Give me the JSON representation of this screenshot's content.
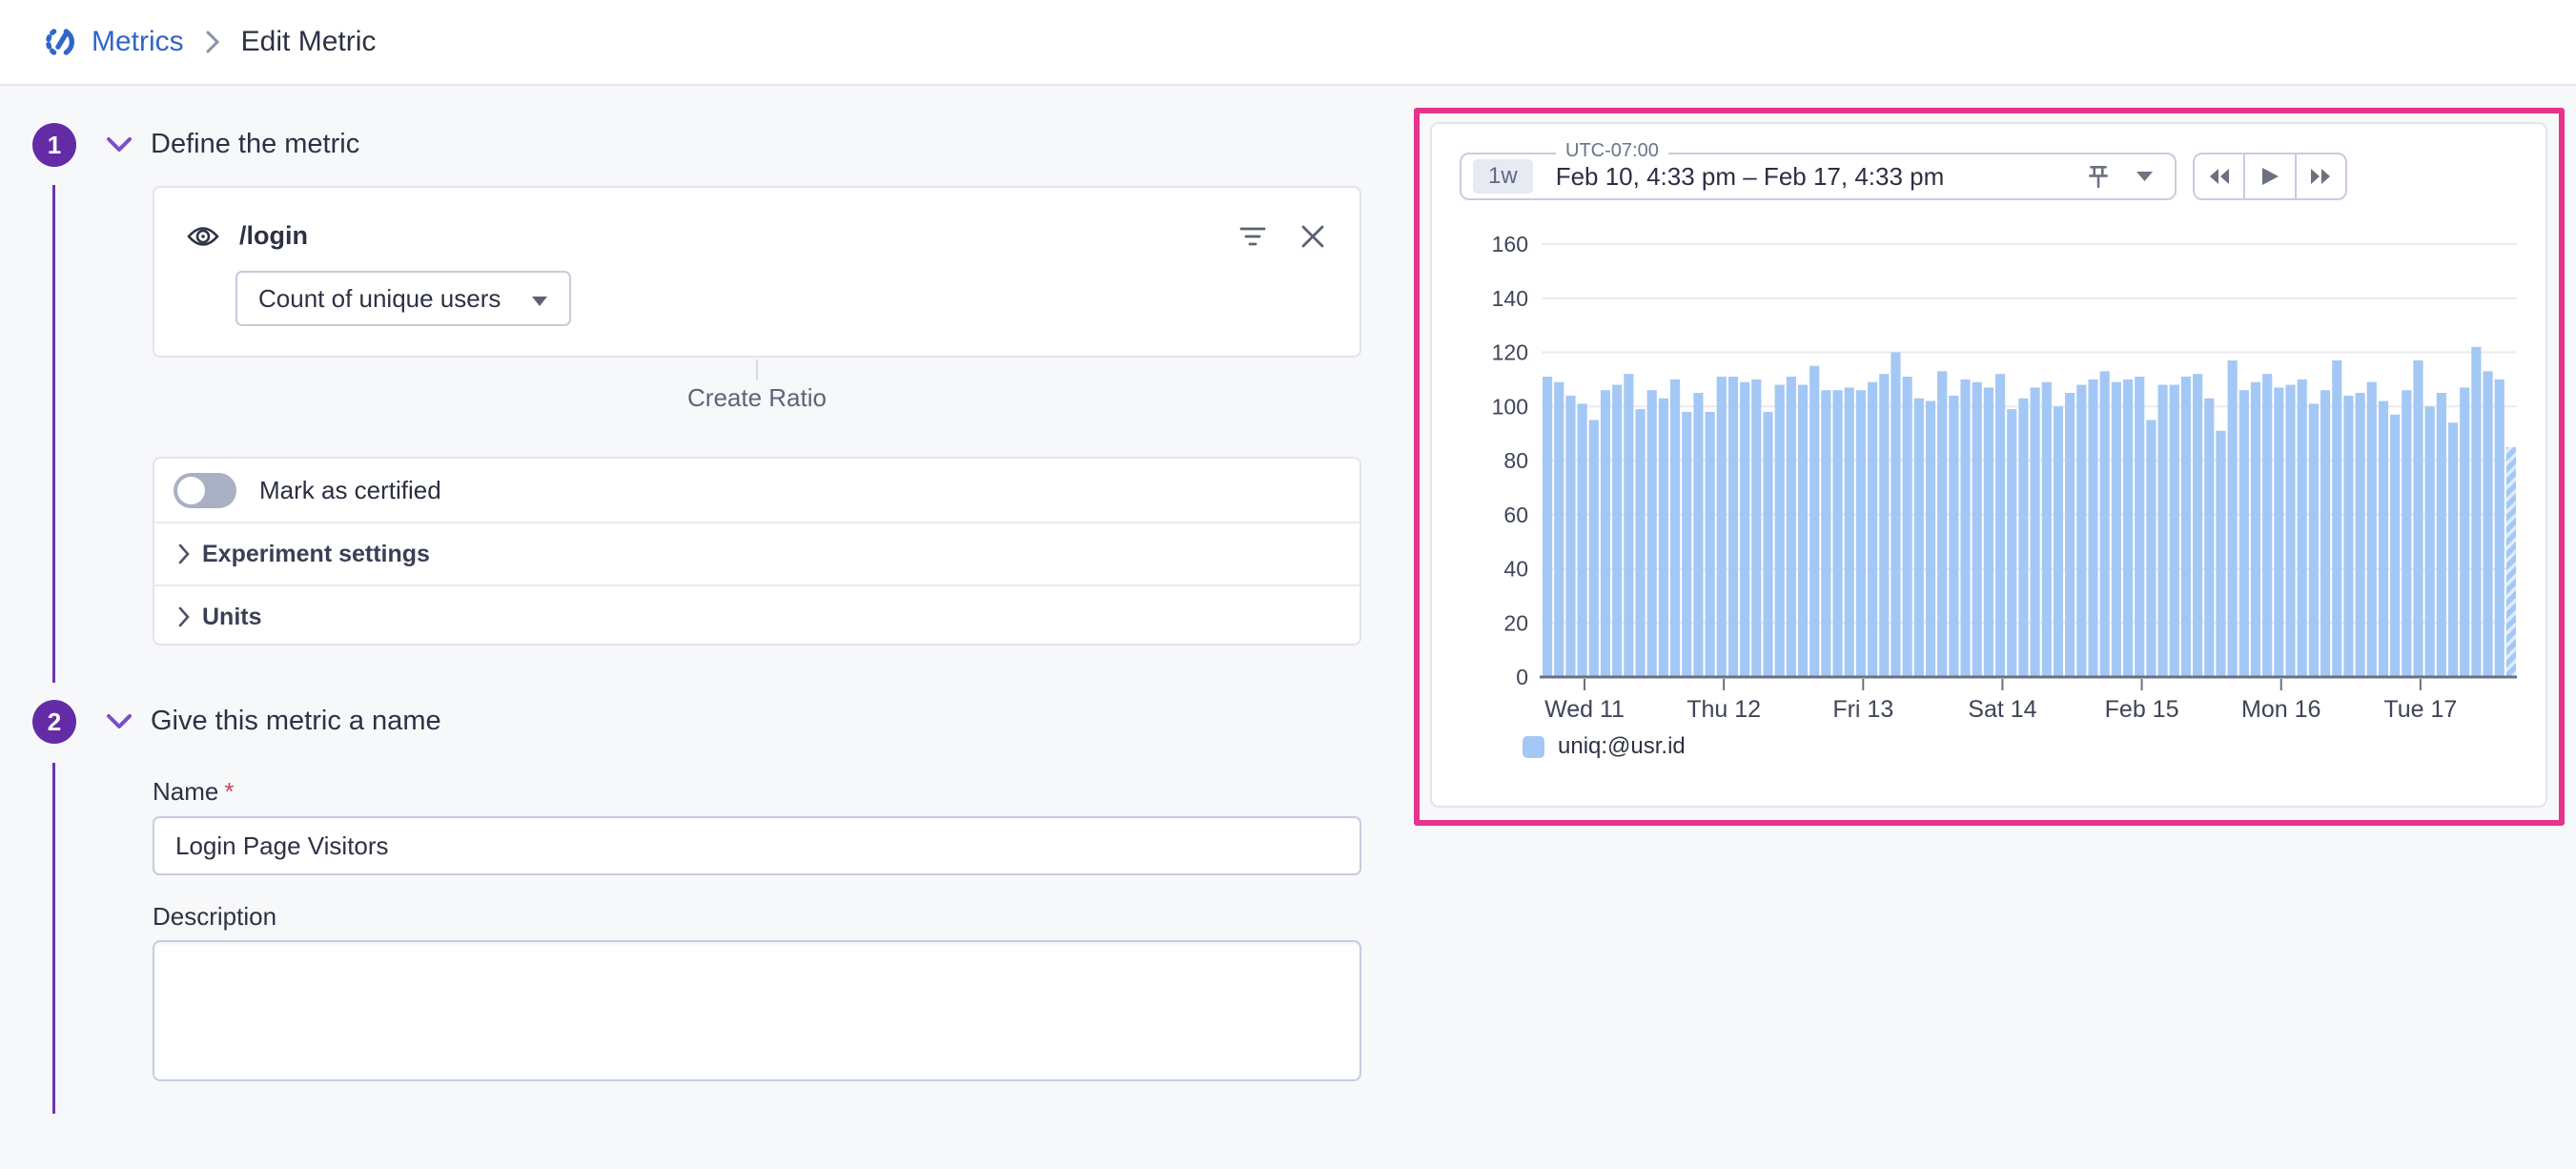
{
  "breadcrumb": {
    "app": "Metrics",
    "page": "Edit Metric"
  },
  "steps": {
    "step1": {
      "number": "1",
      "title": "Define the metric"
    },
    "step2": {
      "number": "2",
      "title": "Give this metric a name"
    }
  },
  "metric_card": {
    "query": "/login",
    "aggregation": "Count of unique users"
  },
  "create_ratio_label": "Create Ratio",
  "settings_card": {
    "certified_label": "Mark as certified",
    "certified_state": "off",
    "experiment_label": "Experiment settings",
    "units_label": "Units"
  },
  "name_section": {
    "name_label": "Name",
    "required_marker": "*",
    "name_value": "Login Page Visitors",
    "description_label": "Description",
    "description_value": ""
  },
  "chart_panel": {
    "timezone": "UTC-07:00",
    "range_shortcut": "1w",
    "range_text": "Feb 10, 4:33 pm – Feb 17, 4:33 pm"
  },
  "theme": {
    "accent_purple": "#632ca6",
    "link_blue": "#2f66c8",
    "highlight_pink": "#e5348b",
    "bar_blue": "#a4c8f5"
  },
  "chart_data": {
    "type": "bar",
    "title": "",
    "xlabel": "",
    "ylabel": "",
    "bucket_interval": "2h",
    "x_range": [
      "Feb 10, 4:33 pm",
      "Feb 17, 4:33 pm"
    ],
    "x_axis": {
      "tick_labels": [
        "Wed 11",
        "Thu 12",
        "Fri 13",
        "Sat 14",
        "Feb 15",
        "Mon 16",
        "Tue 17"
      ]
    },
    "y_axis": {
      "ticks": [
        0,
        20,
        40,
        60,
        80,
        100,
        120,
        140,
        160
      ],
      "range": [
        0,
        160
      ]
    },
    "grid": true,
    "legend_position": "bottom",
    "series": [
      {
        "name": "uniq:@usr.id",
        "color": "#a4c8f5",
        "last_bucket_partial": true,
        "values": [
          111,
          109,
          104,
          101,
          95,
          106,
          108,
          112,
          99,
          106,
          103,
          110,
          98,
          105,
          98,
          111,
          111,
          109,
          110,
          98,
          108,
          111,
          108,
          115,
          106,
          106,
          107,
          106,
          109,
          112,
          120,
          111,
          103,
          102,
          113,
          104,
          110,
          109,
          107,
          112,
          99,
          103,
          107,
          109,
          100,
          105,
          108,
          110,
          113,
          109,
          110,
          111,
          95,
          108,
          108,
          111,
          112,
          103,
          91,
          117,
          106,
          109,
          112,
          107,
          108,
          110,
          101,
          106,
          117,
          104,
          105,
          109,
          102,
          97,
          106,
          117,
          100,
          105,
          94,
          107,
          122,
          113,
          110,
          85
        ]
      }
    ]
  }
}
